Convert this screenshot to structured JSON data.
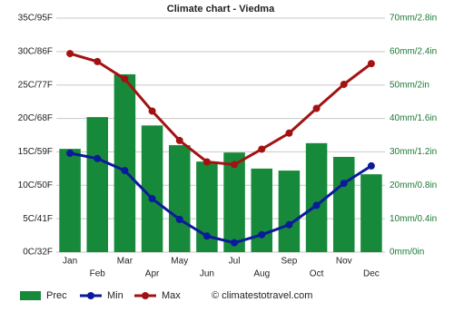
{
  "chart_data": {
    "type": "combo",
    "title": "Climate chart - Viedma",
    "categories": [
      "Jan",
      "Feb",
      "Mar",
      "Apr",
      "May",
      "Jun",
      "Jul",
      "Aug",
      "Sep",
      "Oct",
      "Nov",
      "Dec"
    ],
    "series": [
      {
        "name": "Prec",
        "type": "bar",
        "axis": "y2",
        "color": "#168a3a",
        "values": [
          30.9,
          40.4,
          53.2,
          37.9,
          32,
          27.1,
          29.8,
          25,
          24.4,
          32.6,
          28.5,
          23.3
        ]
      },
      {
        "name": "Min",
        "type": "line",
        "color": "#0a1a9a",
        "values": [
          14.8,
          14.0,
          12.2,
          8.0,
          4.9,
          2.4,
          1.4,
          2.6,
          4.1,
          7.0,
          10.3,
          12.9
        ]
      },
      {
        "name": "Max",
        "type": "line",
        "color": "#a31212",
        "values": [
          29.7,
          28.5,
          25.9,
          21.1,
          16.7,
          13.5,
          13.1,
          15.4,
          17.8,
          21.5,
          25.1,
          28.2
        ]
      }
    ],
    "ylim": [
      0,
      35
    ],
    "yticks": [
      {
        "value": 0,
        "label": "0C/32F"
      },
      {
        "value": 5,
        "label": "5C/41F"
      },
      {
        "value": 10,
        "label": "10C/50F"
      },
      {
        "value": 15,
        "label": "15C/59F"
      },
      {
        "value": 20,
        "label": "20C/68F"
      },
      {
        "value": 25,
        "label": "25C/77F"
      },
      {
        "value": 30,
        "label": "30C/86F"
      },
      {
        "value": 35,
        "label": "35C/95F"
      }
    ],
    "y2lim": [
      0,
      70
    ],
    "y2ticks": [
      {
        "value": 0,
        "label": "0mm/0in"
      },
      {
        "value": 10,
        "label": "10mm/0.4in"
      },
      {
        "value": 20,
        "label": "20mm/0.8in"
      },
      {
        "value": 30,
        "label": "30mm/1.2in"
      },
      {
        "value": 40,
        "label": "40mm/1.6in"
      },
      {
        "value": 50,
        "label": "50mm/2in"
      },
      {
        "value": 60,
        "label": "60mm/2.4in"
      },
      {
        "value": 70,
        "label": "70mm/2.8in"
      }
    ],
    "grid": true,
    "credit": "© climatestotravel.com"
  }
}
